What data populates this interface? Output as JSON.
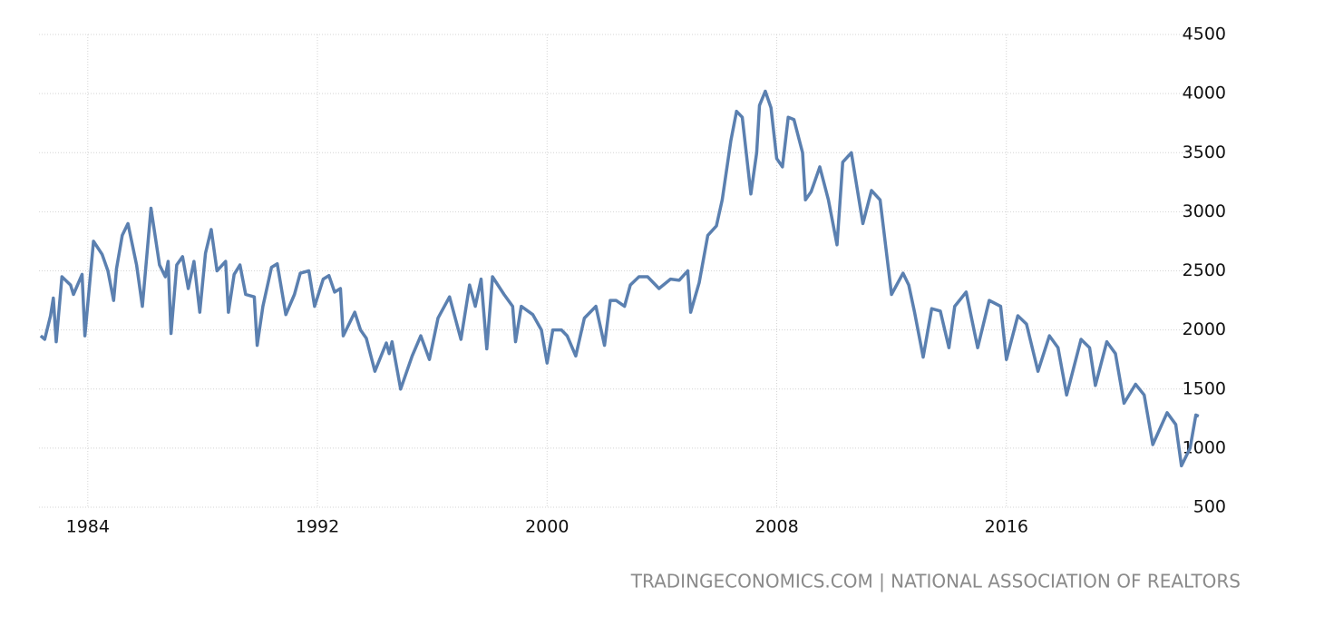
{
  "chart_data": {
    "type": "line",
    "source": "TRADINGECONOMICS.COM | NATIONAL ASSOCIATION OF REALTORS",
    "x": [
      1982.36,
      1982.5,
      1982.7,
      1982.8,
      1982.9,
      1983.1,
      1983.4,
      1983.5,
      1983.8,
      1983.9,
      1984.2,
      1984.5,
      1984.7,
      1984.9,
      1985.0,
      1985.2,
      1985.4,
      1985.7,
      1985.9,
      1986.2,
      1986.5,
      1986.7,
      1986.8,
      1986.9,
      1987.1,
      1987.3,
      1987.5,
      1987.7,
      1987.9,
      1988.1,
      1988.3,
      1988.5,
      1988.8,
      1988.9,
      1989.1,
      1989.3,
      1989.5,
      1989.8,
      1989.9,
      1990.1,
      1990.4,
      1990.6,
      1990.9,
      1991.2,
      1991.4,
      1991.7,
      1991.9,
      1992.2,
      1992.4,
      1992.6,
      1992.8,
      1992.9,
      1993.3,
      1993.5,
      1993.7,
      1994.0,
      1994.4,
      1994.5,
      1994.6,
      1994.9,
      1995.3,
      1995.6,
      1995.9,
      1996.2,
      1996.6,
      1997.0,
      1997.3,
      1997.5,
      1997.7,
      1997.9,
      1998.1,
      1998.5,
      1998.8,
      1998.9,
      1999.1,
      1999.5,
      1999.8,
      2000.0,
      2000.2,
      2000.5,
      2000.7,
      2001.0,
      2001.3,
      2001.7,
      2002.0,
      2002.2,
      2002.4,
      2002.7,
      2002.9,
      2003.2,
      2003.5,
      2003.9,
      2004.3,
      2004.6,
      2004.9,
      2005.0,
      2005.3,
      2005.6,
      2005.9,
      2006.1,
      2006.4,
      2006.6,
      2006.8,
      2007.1,
      2007.3,
      2007.4,
      2007.6,
      2007.8,
      2008.0,
      2008.2,
      2008.4,
      2008.6,
      2008.9,
      2009.0,
      2009.2,
      2009.5,
      2009.8,
      2010.1,
      2010.3,
      2010.6,
      2011.0,
      2011.3,
      2011.6,
      2012.0,
      2012.4,
      2012.6,
      2012.8,
      2013.1,
      2013.4,
      2013.7,
      2014.0,
      2014.2,
      2014.6,
      2015.0,
      2015.4,
      2015.8,
      2016.0,
      2016.4,
      2016.7,
      2017.1,
      2017.5,
      2017.8,
      2018.1,
      2018.6,
      2018.9,
      2019.1,
      2019.5,
      2019.8,
      2020.1,
      2020.5,
      2020.8,
      2021.1,
      2021.6,
      2021.9,
      2022.1,
      2022.4,
      2022.6,
      2022.7
    ],
    "series": [
      {
        "color": "#5b80b0",
        "values": [
          1950,
          1920,
          2120,
          2270,
          1900,
          2450,
          2380,
          2300,
          2470,
          1950,
          2750,
          2640,
          2500,
          2250,
          2520,
          2800,
          2900,
          2550,
          2200,
          3030,
          2550,
          2450,
          2580,
          1970,
          2550,
          2620,
          2350,
          2580,
          2150,
          2650,
          2850,
          2500,
          2580,
          2150,
          2470,
          2550,
          2300,
          2280,
          1870,
          2200,
          2530,
          2560,
          2130,
          2300,
          2480,
          2500,
          2200,
          2430,
          2460,
          2320,
          2350,
          1950,
          2150,
          2000,
          1930,
          1650,
          1890,
          1800,
          1900,
          1500,
          1780,
          1950,
          1750,
          2100,
          2280,
          1920,
          2380,
          2200,
          2430,
          1840,
          2450,
          2300,
          2200,
          1900,
          2200,
          2130,
          2000,
          1720,
          2000,
          2000,
          1950,
          1780,
          2100,
          2200,
          1870,
          2250,
          2250,
          2200,
          2380,
          2450,
          2450,
          2350,
          2430,
          2420,
          2500,
          2150,
          2400,
          2800,
          2880,
          3100,
          3600,
          3850,
          3800,
          3150,
          3500,
          3900,
          4020,
          3880,
          3450,
          3380,
          3800,
          3780,
          3500,
          3100,
          3170,
          3380,
          3100,
          2720,
          3420,
          3500,
          2900,
          3180,
          3100,
          2300,
          2480,
          2380,
          2150,
          1770,
          2180,
          2160,
          1850,
          2200,
          2320,
          1850,
          2250,
          2200,
          1750,
          2120,
          2050,
          1650,
          1950,
          1850,
          1450,
          1920,
          1850,
          1530,
          1900,
          1800,
          1380,
          1540,
          1450,
          1030,
          1300,
          1200,
          850,
          1000,
          1280,
          1270
        ]
      }
    ],
    "xlim": [
      1982.3,
      2022.8
    ],
    "xticks": [
      1984,
      1992,
      2000,
      2008,
      2016
    ],
    "ylim": [
      500,
      4500
    ],
    "yticks": [
      500,
      1000,
      1500,
      2000,
      2500,
      3000,
      3500,
      4000,
      4500
    ],
    "grid": true
  }
}
